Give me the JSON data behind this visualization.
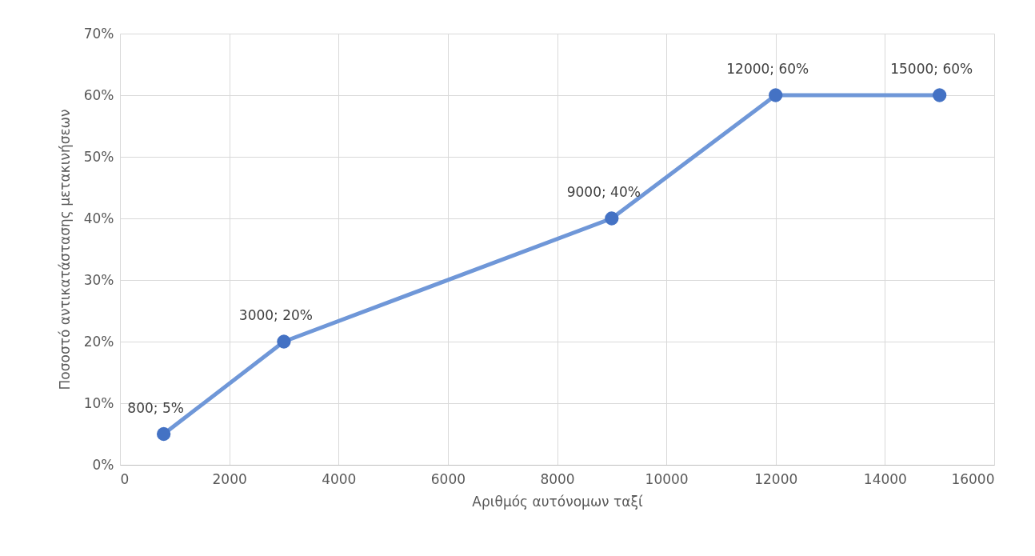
{
  "chart_data": {
    "type": "line",
    "xlabel": "Αριθμός αυτόνομων ταξί",
    "ylabel": "Ποσοστό αντικατάστασης μετακινήσεων",
    "x": [
      800,
      3000,
      9000,
      12000,
      15000
    ],
    "series": [
      {
        "color": "#6f97d8",
        "values": [
          5,
          20,
          40,
          60,
          60
        ],
        "value_labels": [
          "800; 5%",
          "3000; 20%",
          "9000; 40%",
          "12000; 60%",
          "15000; 60%"
        ]
      }
    ],
    "xlim": [
      0,
      16000
    ],
    "xticks": [
      0,
      2000,
      4000,
      6000,
      8000,
      10000,
      12000,
      14000,
      16000
    ],
    "ylim": [
      0,
      70
    ],
    "yticks": [
      {
        "value": 0,
        "label": "0%"
      },
      {
        "value": 10,
        "label": "10%"
      },
      {
        "value": 20,
        "label": "20%"
      },
      {
        "value": 30,
        "label": "30%"
      },
      {
        "value": 40,
        "label": "40%"
      },
      {
        "value": 50,
        "label": "50%"
      },
      {
        "value": 60,
        "label": "60%"
      },
      {
        "value": 70,
        "label": "70%"
      }
    ],
    "grid": true,
    "marker": "circle",
    "line_style": "solid"
  }
}
